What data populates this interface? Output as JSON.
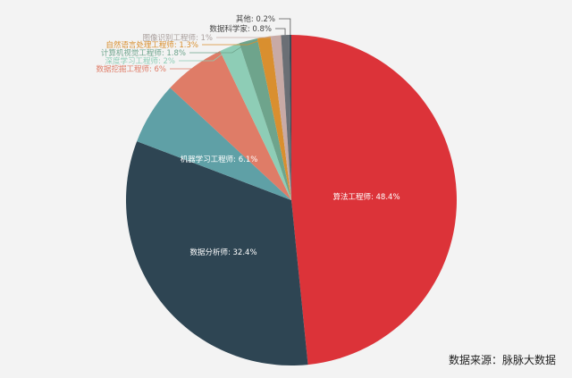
{
  "chart_data": {
    "type": "pie",
    "title": "",
    "start_angle_deg": 0,
    "direction": "clockwise",
    "slices": [
      {
        "label": "算法工程师",
        "value": 48.4,
        "color": "#dc3339",
        "label_pos": "inside"
      },
      {
        "label": "数据分析师",
        "value": 32.4,
        "color": "#2e4553",
        "label_pos": "inside"
      },
      {
        "label": "机器学习工程师",
        "value": 6.1,
        "color": "#5fa0a6",
        "label_pos": "inside"
      },
      {
        "label": "数据挖掘工程师",
        "value": 6,
        "color": "#df7c67",
        "label_pos": "outside"
      },
      {
        "label": "深度学习工程师",
        "value": 2,
        "color": "#8ecdb6",
        "label_pos": "outside"
      },
      {
        "label": "计算机视觉工程师",
        "value": 1.8,
        "color": "#6ea48c",
        "label_pos": "outside"
      },
      {
        "label": "自然语言处理工程师",
        "value": 1.3,
        "color": "#d98f2f",
        "label_pos": "outside"
      },
      {
        "label": "图像识别工程师",
        "value": 1,
        "color": "#c8aaa6",
        "label_pos": "outside"
      },
      {
        "label": "数据科学家",
        "value": 0.8,
        "color": "#6b6f75",
        "label_pos": "outside"
      },
      {
        "label": "其他",
        "value": 0.2,
        "color": "#3d4a55",
        "label_pos": "outside"
      }
    ],
    "unit": "%"
  },
  "source": "数据来源：脉脉大数据"
}
